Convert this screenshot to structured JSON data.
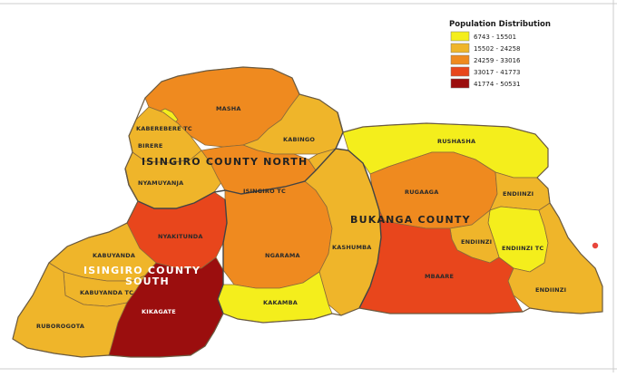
{
  "legend": {
    "title": "Population Distribution",
    "classes": [
      {
        "label": "6743 - 15501",
        "color": "#f4ee1c"
      },
      {
        "label": "15502 - 24258",
        "color": "#efb52a"
      },
      {
        "label": "24259 - 33016",
        "color": "#ef8a1f"
      },
      {
        "label": "33017 - 41773",
        "color": "#e8461c"
      },
      {
        "label": "41774 - 50531",
        "color": "#9b0e0e"
      }
    ]
  },
  "counties": {
    "north": "ISINGIRO COUNTY NORTH",
    "south_line1": "ISINGIRO COUNTY",
    "south_line2": "SOUTH",
    "bukanga": "BUKANGA COUNTY"
  },
  "subcounties": {
    "masha": "MASHA",
    "kaberebere_tc": "KABEREBERE TC",
    "kabingo": "KABINGO",
    "birere": "BIRERE",
    "nyamuyanja": "NYAMUYANJA",
    "isingiro_tc": "ISINGIRO TC",
    "rushasha": "RUSHASHA",
    "rugaaga": "RUGAAGA",
    "endiinzi_ne": "ENDIINZI",
    "endiinzi_mid": "ENDIINZI",
    "endiinzi_tc": "ENDIINZI TC",
    "endiinzi_se": "ENDIINZI",
    "kashumba": "KASHUMBA",
    "mbaare": "MBAARE",
    "nyakitunda": "NYAKITUNDA",
    "ngarama": "NGARAMA",
    "kakamba": "KAKAMBA",
    "kabuyanda": "KABUYANDA",
    "kabuyanda_tc": "KABUYANDA TC",
    "kikagate": "KIKAGATE",
    "ruborogota": "RUBOROGOTA"
  }
}
